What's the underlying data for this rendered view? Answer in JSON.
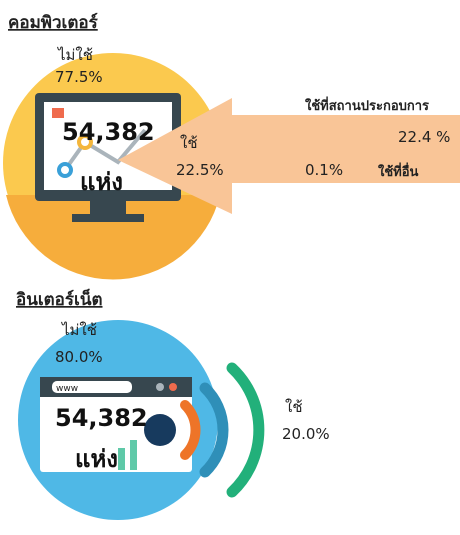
{
  "sections": [
    {
      "title": "คอมพิวเตอร์",
      "not_use_label": "ไม่ใช้",
      "not_use_value": "77.5%",
      "count": "54,382",
      "unit": "แห่ง",
      "use_label": "ใช้",
      "use_value": "22.5%",
      "business_label": "ใช้ที่สถานประกอบการ",
      "business_value": "22.4 %",
      "other_value": "0.1%",
      "other_label": "ใช้ที่อื่น"
    },
    {
      "title": "อินเตอร์เน็ต",
      "not_use_label": "ไม่ใช้",
      "not_use_value": "80.0%",
      "count": "54,382",
      "unit": "แห่ง",
      "use_label": "ใช้",
      "use_value": "20.0%",
      "browser_url": "www"
    }
  ]
}
